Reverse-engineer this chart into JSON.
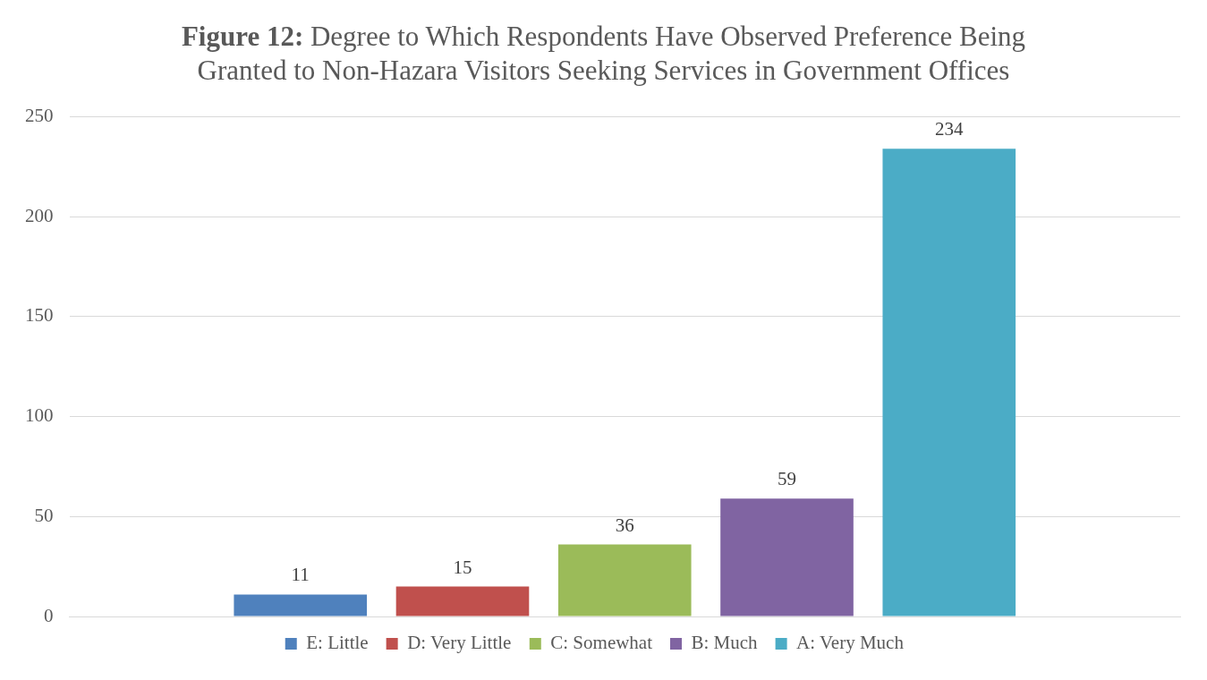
{
  "chart_data": {
    "type": "bar",
    "title": "Figure 12: Degree to Which Respondents Have Observed Preference Being Granted to Non-Hazara Visitors Seeking Services in Government Offices",
    "categories": [
      null
    ],
    "series": [
      {
        "name": "E: Little",
        "color": "#4f81bd",
        "values": [
          11
        ]
      },
      {
        "name": "D: Very Little",
        "color": "#c0504d",
        "values": [
          15
        ]
      },
      {
        "name": "C: Somewhat",
        "color": "#9bbb59",
        "values": [
          36
        ]
      },
      {
        "name": "B: Much",
        "color": "#8064a2",
        "values": [
          59
        ]
      },
      {
        "name": "A: Very Much",
        "color": "#4bacc6",
        "values": [
          234
        ]
      }
    ],
    "ylim": [
      0,
      250
    ],
    "yticks": [
      0,
      50,
      100,
      150,
      200,
      250
    ],
    "grid": "y",
    "legend": "bottom",
    "data_labels": true
  }
}
